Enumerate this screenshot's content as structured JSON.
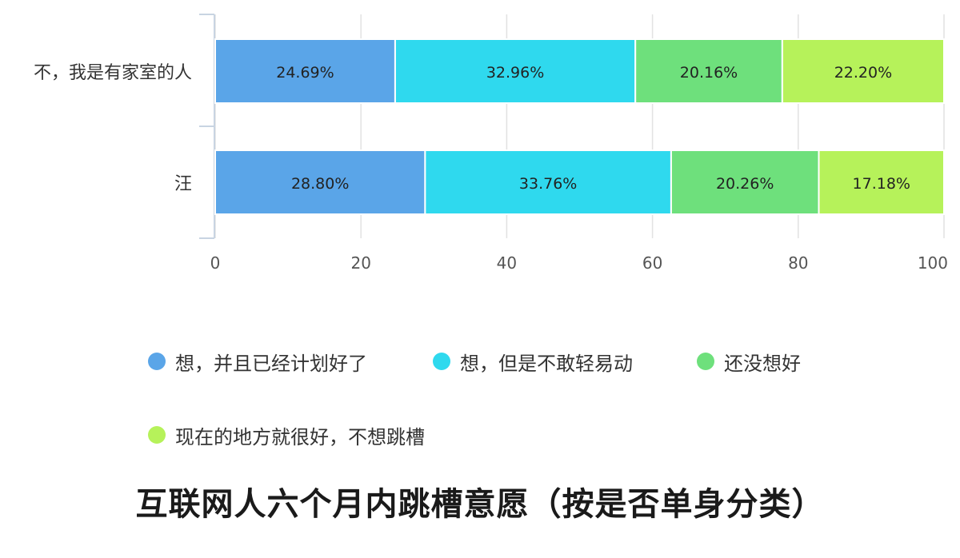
{
  "chart_data": {
    "type": "bar",
    "orientation": "horizontal",
    "stacked": true,
    "title": "互联网人六个月内跳槽意愿（按是否单身分类）",
    "categories": [
      "不，我是有家室的人",
      "汪"
    ],
    "series": [
      {
        "name": "想，并且已经计划好了",
        "color": "#5aa5e8",
        "values": [
          24.69,
          28.8
        ],
        "labels": [
          "24.69%",
          "28.80%"
        ]
      },
      {
        "name": "想，但是不敢轻易动",
        "color": "#2fd9ee",
        "values": [
          32.96,
          33.76
        ],
        "labels": [
          "32.96%",
          "33.76%"
        ]
      },
      {
        "name": "还没想好",
        "color": "#6ee07c",
        "values": [
          20.16,
          20.26
        ],
        "labels": [
          "20.16%",
          "20.26%"
        ]
      },
      {
        "name": "现在的地方就很好，不想跳槽",
        "color": "#b6f25a",
        "values": [
          22.2,
          17.18
        ],
        "labels": [
          "22.20%",
          "17.18%"
        ]
      }
    ],
    "xlim": [
      0,
      100
    ],
    "xticks": [
      "0",
      "20",
      "40",
      "60",
      "80",
      "100"
    ],
    "grid": true,
    "legend_position": "bottom"
  }
}
